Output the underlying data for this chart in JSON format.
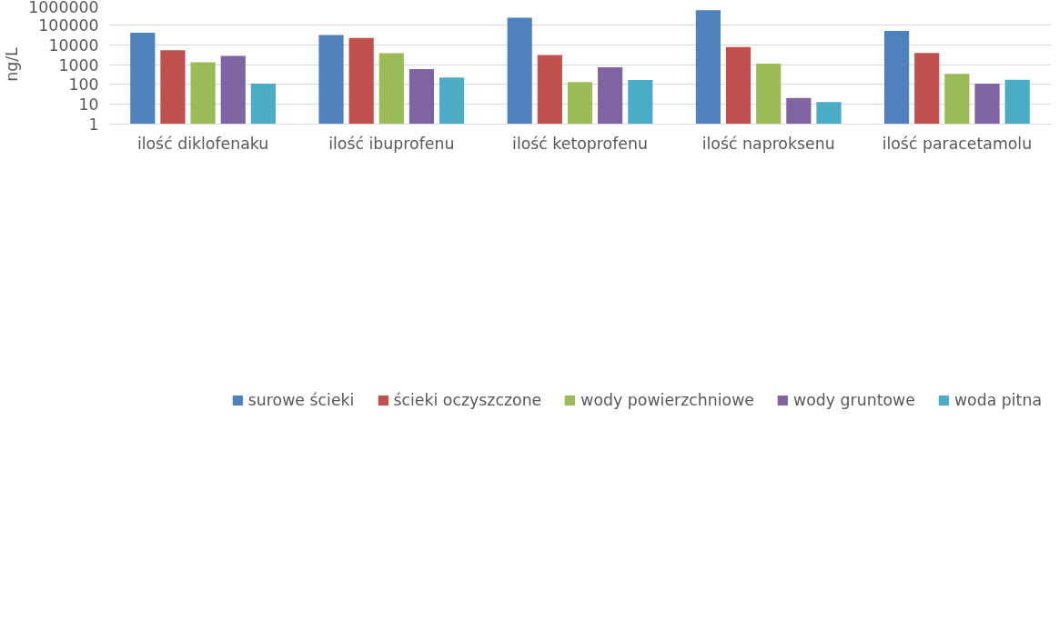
{
  "chart_data": {
    "type": "bar",
    "ylabel": "ng/L",
    "log": true,
    "ylim": [
      1,
      1000000
    ],
    "yticks": [
      1,
      10,
      100,
      1000,
      10000,
      100000,
      1000000
    ],
    "grid": "y",
    "legend": "bottom",
    "categories": [
      "ilość diklofenaku",
      "ilość ibuprofenu",
      "ilość ketoprofenu",
      "ilość naproksenu",
      "ilość paracetamolu"
    ],
    "series": [
      {
        "name": "surowe ścieki",
        "color": "#4f81bd",
        "values": [
          40000,
          31000,
          230000,
          540000,
          50000
        ]
      },
      {
        "name": "ścieki oczyszczone",
        "color": "#c0504d",
        "values": [
          5300,
          22000,
          3000,
          7700,
          3800
        ]
      },
      {
        "name": "wody powierzchniowe",
        "color": "#9bbb59",
        "values": [
          1300,
          3700,
          130,
          1100,
          340
        ]
      },
      {
        "name": "wody gruntowe",
        "color": "#8064a2",
        "values": [
          2750,
          590,
          720,
          21,
          110
        ]
      },
      {
        "name": "woda pitna",
        "color": "#4bacc6",
        "values": [
          110,
          220,
          165,
          13,
          170
        ]
      }
    ]
  }
}
